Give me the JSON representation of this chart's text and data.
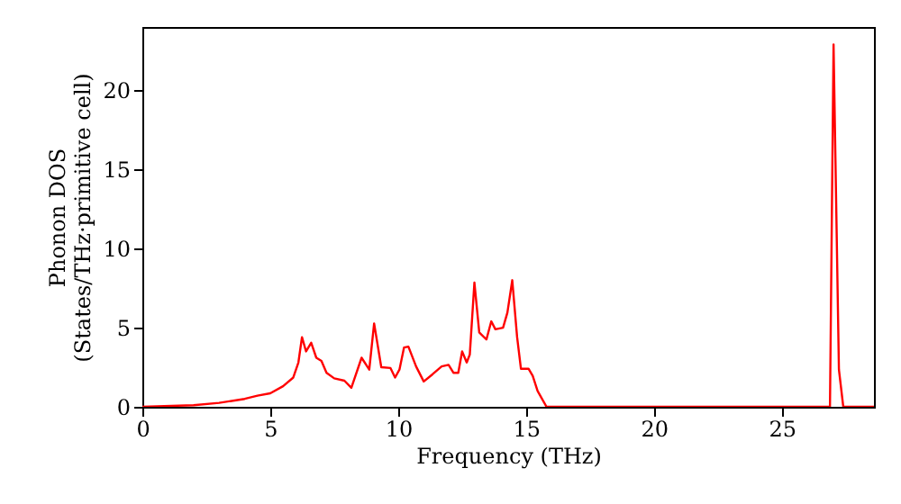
{
  "chart_data": {
    "type": "line",
    "xlabel": "Frequency (THz)",
    "ylabel": "Phonon DOS\n(States/THz·primitive cell)",
    "x": [
      0,
      2,
      3,
      4,
      4.5,
      5,
      5.5,
      5.9,
      6.1,
      6.24,
      6.4,
      6.6,
      6.8,
      7.0,
      7.2,
      7.5,
      7.9,
      8.17,
      8.57,
      8.87,
      9.06,
      9.34,
      9.7,
      9.88,
      10.05,
      10.23,
      10.4,
      10.7,
      11.0,
      11.34,
      11.7,
      11.97,
      12.16,
      12.35,
      12.5,
      12.68,
      12.8,
      12.98,
      13.17,
      13.45,
      13.64,
      13.8,
      14.1,
      14.27,
      14.46,
      14.65,
      14.8,
      15.1,
      15.26,
      15.45,
      15.8,
      26.88,
      27.02,
      27.23,
      27.4,
      28.6
    ],
    "series": [
      {
        "color": "#ff0000",
        "values": [
          0,
          0.1,
          0.25,
          0.5,
          0.7,
          0.85,
          1.3,
          1.85,
          2.8,
          4.4,
          3.5,
          4.05,
          3.1,
          2.9,
          2.15,
          1.8,
          1.65,
          1.2,
          3.1,
          2.35,
          5.27,
          2.5,
          2.45,
          1.85,
          2.35,
          3.75,
          3.8,
          2.55,
          1.6,
          2.05,
          2.55,
          2.65,
          2.15,
          2.15,
          3.5,
          2.8,
          3.3,
          7.85,
          4.7,
          4.25,
          5.4,
          4.9,
          5.0,
          5.95,
          8.0,
          4.4,
          2.4,
          2.4,
          1.95,
          1.0,
          0,
          0,
          22.9,
          2.35,
          0,
          0
        ]
      }
    ],
    "xlim": [
      0,
      28.6
    ],
    "ylim": [
      0,
      24
    ],
    "xticks": [
      0,
      5,
      10,
      15,
      20,
      25
    ],
    "yticks": [
      0,
      5,
      10,
      15,
      20
    ],
    "grid": false
  }
}
